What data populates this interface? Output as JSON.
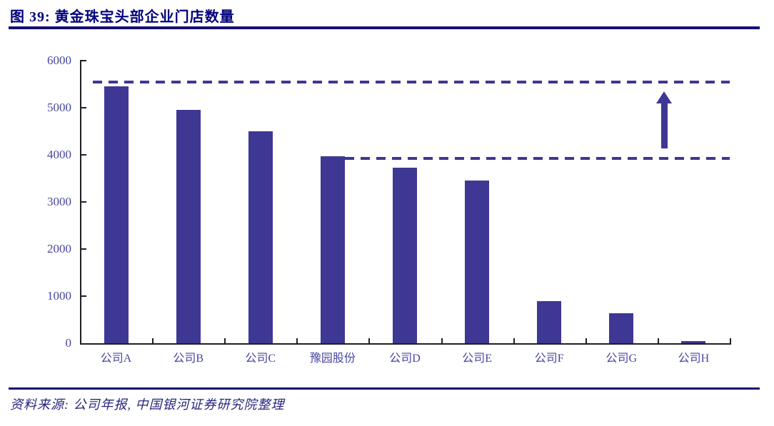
{
  "figure": {
    "title": "图 39: 黄金珠宝头部企业门店数量",
    "source": "资料来源: 公司年报, 中国银河证券研究院整理"
  },
  "colors": {
    "title_text": "#00007b",
    "rule": "#140f72",
    "source_text": "#26257d",
    "bar_fill": "#3e3794",
    "dash_line": "#3e3794",
    "arrow": "#3e3794",
    "axis_line": "#1f1f26",
    "tick_label": "#4745a0"
  },
  "chart_data": {
    "type": "bar",
    "categories": [
      "公司A",
      "公司B",
      "公司C",
      "豫园股份",
      "公司D",
      "公司E",
      "公司F",
      "公司G",
      "公司H"
    ],
    "values": [
      5450,
      4950,
      4500,
      3970,
      3720,
      3450,
      890,
      630,
      50
    ],
    "title": "",
    "xlabel": "",
    "ylabel": "",
    "ylim": [
      0,
      6000
    ],
    "yticks": [
      0,
      1000,
      2000,
      3000,
      4000,
      5000,
      6000
    ],
    "grid": false,
    "legend": false,
    "annotations": {
      "dashed_line_top_value": 5550,
      "dashed_line_bottom_value": 3930,
      "dashed_line_bottom_starts_at_category": "豫园股份",
      "arrow_direction": "up",
      "arrow_meaning": "gap between second-tier level and leader level"
    }
  }
}
